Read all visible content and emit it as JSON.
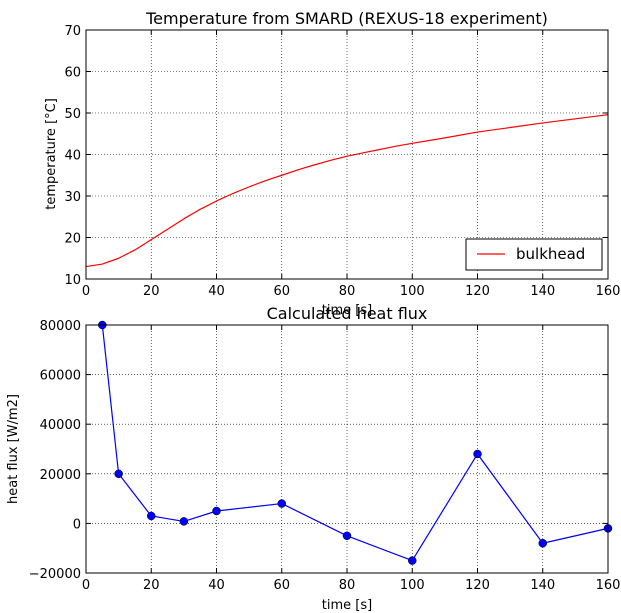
{
  "chart_data": [
    {
      "type": "line",
      "title": "Temperature from SMARD (REXUS-18 experiment)",
      "xlabel": "time [s]",
      "ylabel": "temperature [°C]",
      "xlim": [
        0,
        160
      ],
      "ylim": [
        10,
        70
      ],
      "xticks": [
        0,
        20,
        40,
        60,
        80,
        100,
        120,
        140,
        160
      ],
      "yticks": [
        10,
        20,
        30,
        40,
        50,
        60,
        70
      ],
      "grid": true,
      "legend_position": "lower-right",
      "series": [
        {
          "name": "bulkhead",
          "color": "#ff0000",
          "markers": false,
          "x": [
            0,
            5,
            10,
            15,
            20,
            25,
            30,
            35,
            40,
            45,
            50,
            55,
            60,
            65,
            70,
            75,
            80,
            85,
            90,
            95,
            100,
            110,
            120,
            130,
            140,
            150,
            160
          ],
          "y": [
            13.0,
            13.6,
            15.0,
            17.0,
            19.5,
            22.0,
            24.5,
            26.8,
            28.8,
            30.6,
            32.2,
            33.7,
            35.0,
            36.3,
            37.5,
            38.6,
            39.6,
            40.4,
            41.2,
            42.0,
            42.7,
            44.0,
            45.4,
            46.5,
            47.6,
            48.6,
            49.6
          ]
        }
      ]
    },
    {
      "type": "line",
      "title": "Calculated heat flux",
      "xlabel": "time [s]",
      "ylabel": "heat flux [W/m2]",
      "xlim": [
        0,
        160
      ],
      "ylim": [
        -20000,
        80000
      ],
      "xticks": [
        0,
        20,
        40,
        60,
        80,
        100,
        120,
        140,
        160
      ],
      "yticks": [
        -20000,
        0,
        20000,
        40000,
        60000,
        80000
      ],
      "grid": true,
      "series": [
        {
          "color": "#0000ff",
          "markers": true,
          "x": [
            5,
            10,
            20,
            30,
            40,
            60,
            80,
            100,
            120,
            140,
            160
          ],
          "y": [
            80000,
            20000,
            3000,
            800,
            5000,
            8000,
            -5000,
            -15000,
            28000,
            -8000,
            -2000
          ]
        }
      ]
    }
  ]
}
